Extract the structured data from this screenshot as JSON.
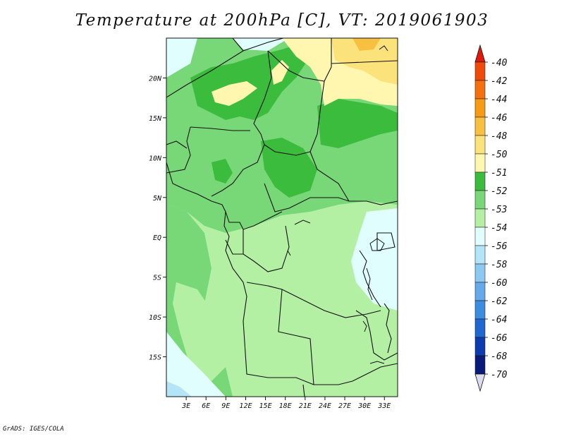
{
  "title": "Temperature at 200hPa [C], VT: 2019061903",
  "credit": "GrADS: IGES/COLA",
  "axes": {
    "lat_labels": [
      "20N",
      "15N",
      "10N",
      "5N",
      "EQ",
      "5S",
      "10S",
      "15S"
    ],
    "lat_values": [
      20,
      15,
      10,
      5,
      0,
      -5,
      -10,
      -15
    ],
    "lon_labels": [
      "3E",
      "6E",
      "9E",
      "12E",
      "15E",
      "18E",
      "21E",
      "24E",
      "27E",
      "30E",
      "33E"
    ],
    "lon_values": [
      3,
      6,
      9,
      12,
      15,
      18,
      21,
      24,
      27,
      30,
      33
    ],
    "lon_range": [
      0,
      35
    ],
    "lat_range": [
      -20,
      25
    ]
  },
  "colorbar": {
    "labels": [
      "-40",
      "-42",
      "-44",
      "-46",
      "-48",
      "-50",
      "-51",
      "-52",
      "-53",
      "-54",
      "-56",
      "-58",
      "-60",
      "-62",
      "-64",
      "-66",
      "-68",
      "-70"
    ],
    "colors": [
      "#e01a0a",
      "#f04a0a",
      "#f5700f",
      "#f79a14",
      "#f8c040",
      "#fbe27a",
      "#fff7b0",
      "#3cbc3c",
      "#78d878",
      "#b4f0a4",
      "#e0fefe",
      "#b4e4f8",
      "#8cc8f0",
      "#64aaea",
      "#3c8ce0",
      "#1f68d0",
      "#0c3cb0",
      "#0a1a78",
      "#dcdcf0"
    ]
  },
  "palette": {
    "warm_pale": "#fff7b0",
    "warm_light": "#fbe27a",
    "green_dark": "#3cbc3c",
    "green_mid": "#78d878",
    "green_light": "#b4f0a4",
    "cyan_pale": "#e0fefe",
    "blue_light": "#b4e4f8"
  }
}
